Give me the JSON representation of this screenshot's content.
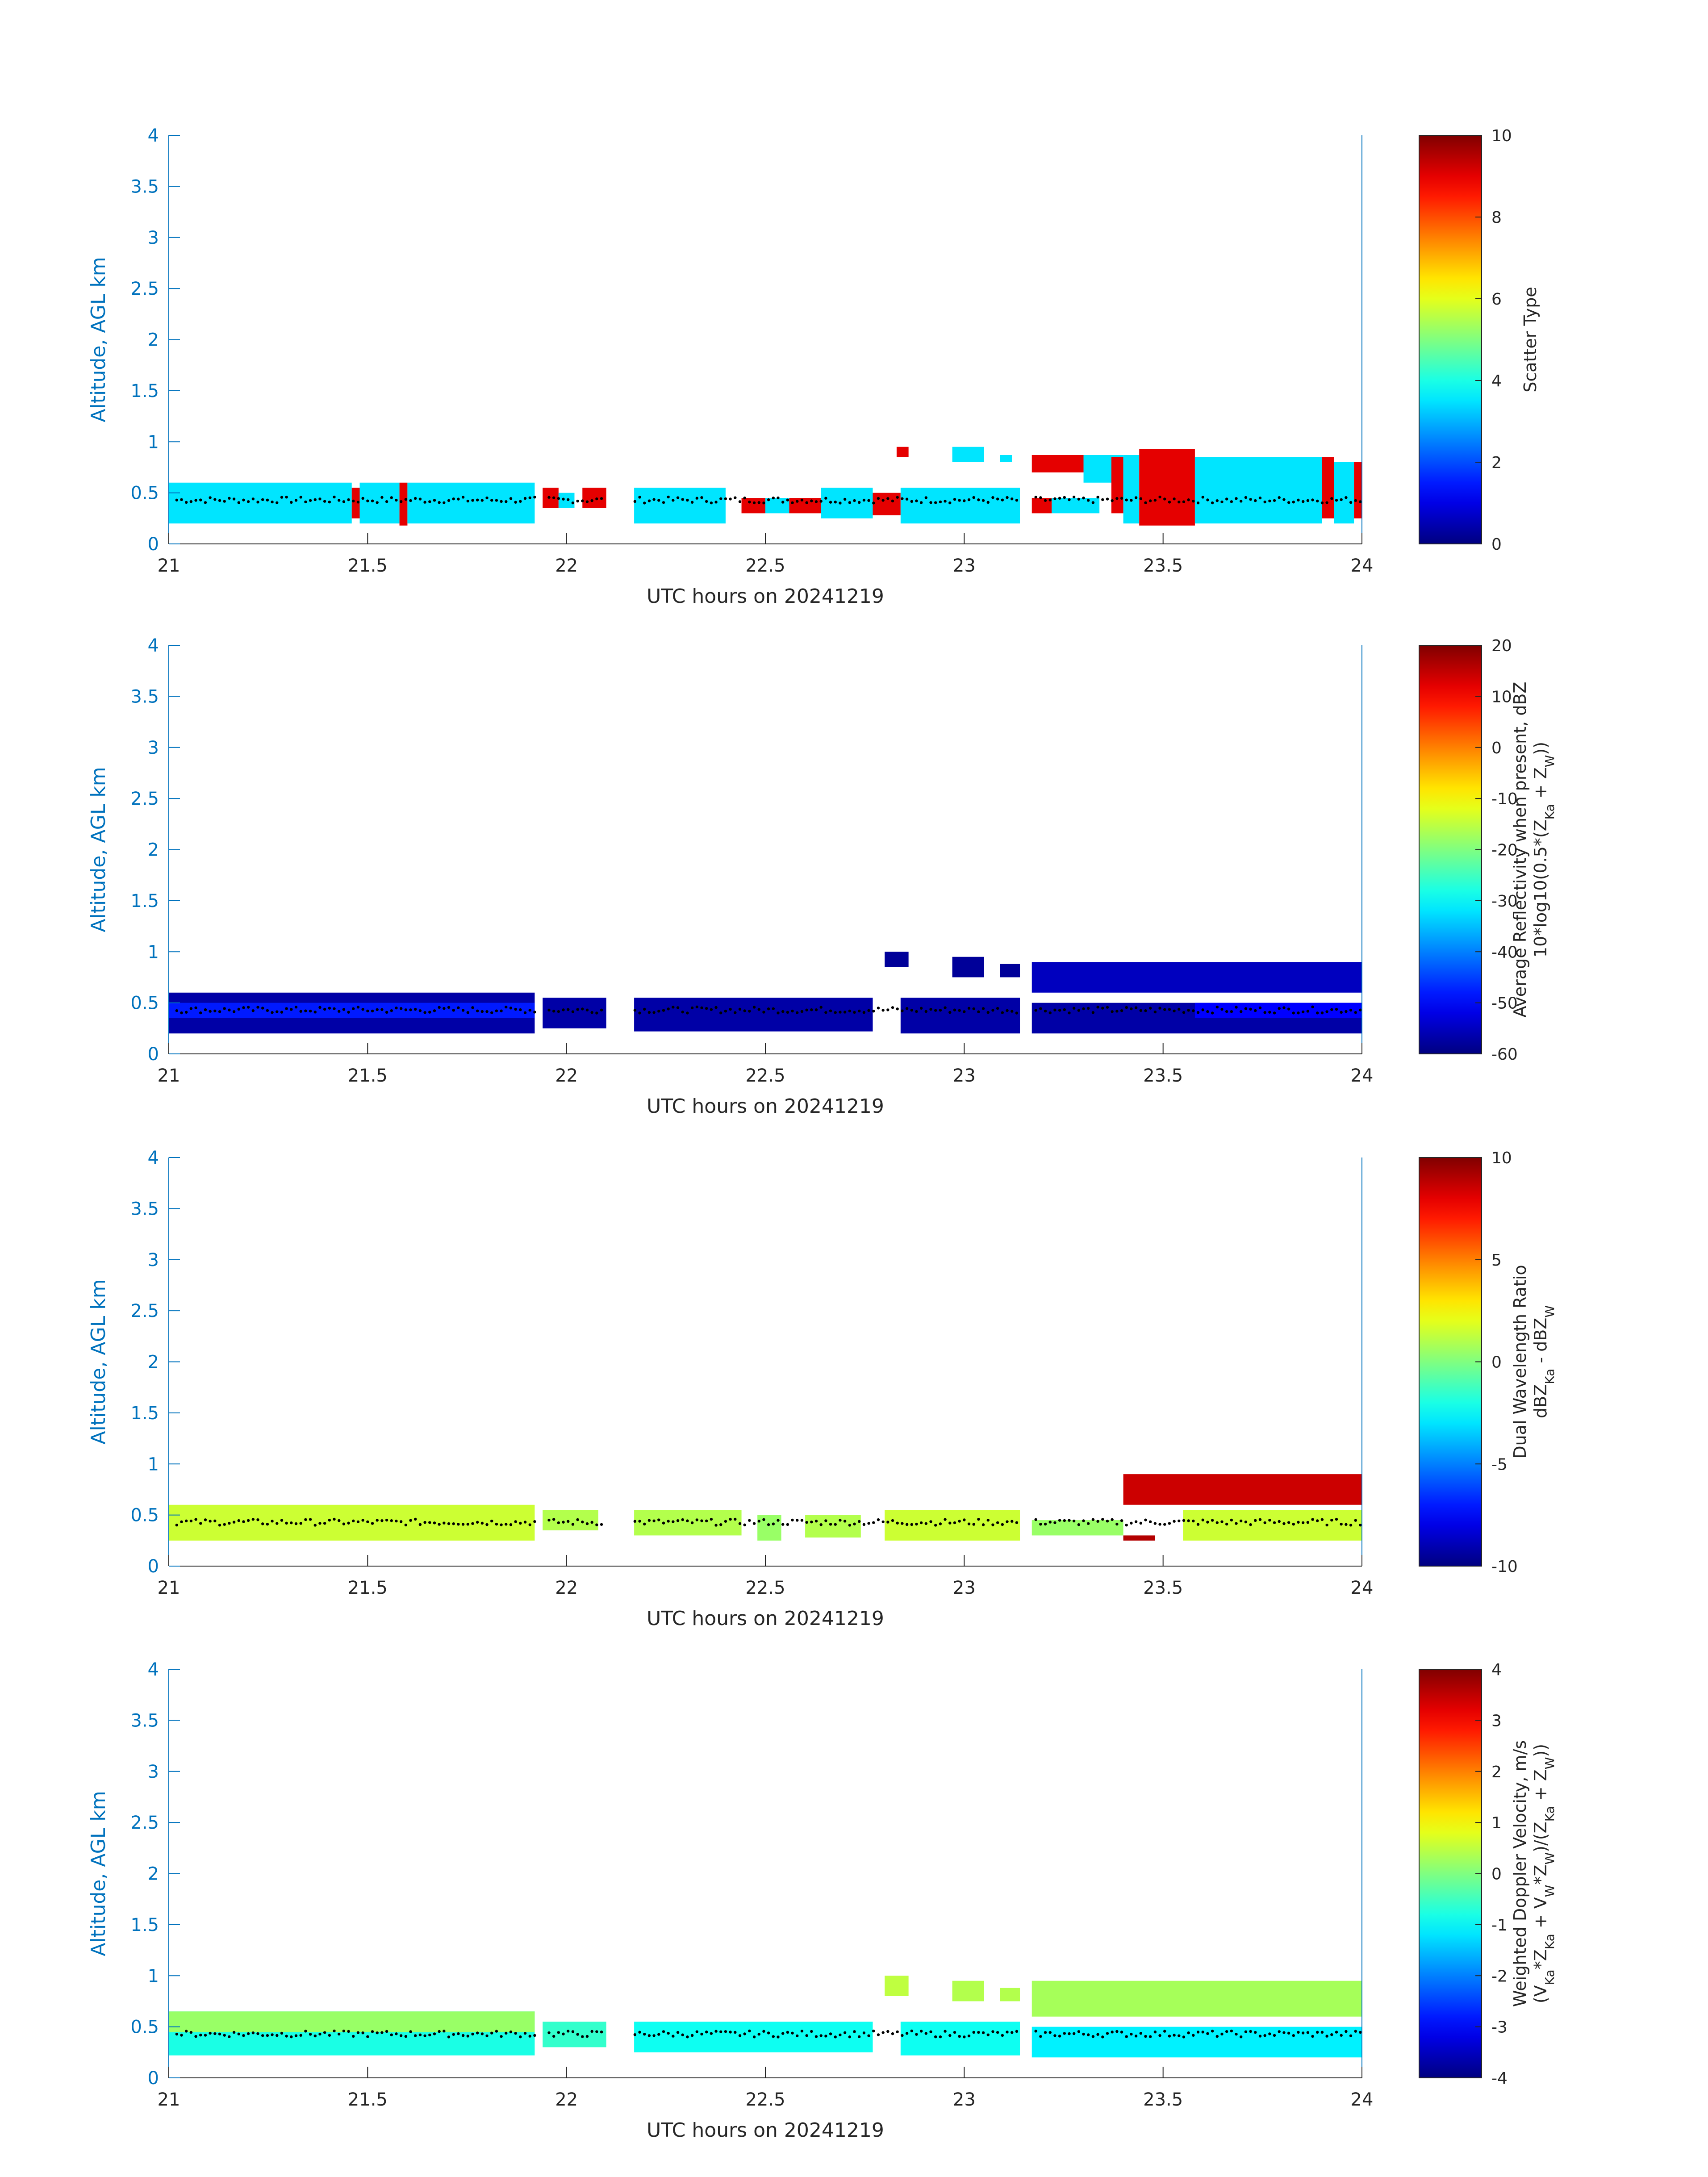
{
  "colors": {
    "axis_blue": "#0072BD",
    "text_dark": "#262626",
    "background": "#ffffff",
    "colormap": "jet",
    "surface_marker": "#000000"
  },
  "chart_data": [
    {
      "type": "heatmap",
      "panel": 1,
      "xlabel": "UTC hours on 20241219",
      "ylabel": "Altitude, AGL km",
      "xlim": [
        21,
        24
      ],
      "ylim": [
        0,
        4
      ],
      "xticks": [
        "21",
        "21.5",
        "22",
        "22.5",
        "23",
        "23.5",
        "24"
      ],
      "yticks": [
        "0",
        "0.5",
        "1",
        "1.5",
        "2",
        "2.5",
        "3",
        "3.5",
        "4"
      ],
      "colorbar": {
        "label_lines": [
          "Scatter Type"
        ],
        "clim": [
          0,
          10
        ],
        "ticks": [
          "0",
          "2",
          "4",
          "6",
          "8",
          "10"
        ]
      },
      "cells": [
        {
          "x0": 21.0,
          "x1": 21.46,
          "y0": 0.2,
          "y1": 0.6,
          "v": 3.5
        },
        {
          "x0": 21.46,
          "x1": 21.48,
          "y0": 0.25,
          "y1": 0.55,
          "v": 9.0
        },
        {
          "x0": 21.48,
          "x1": 21.58,
          "y0": 0.2,
          "y1": 0.6,
          "v": 3.5
        },
        {
          "x0": 21.58,
          "x1": 21.6,
          "y0": 0.18,
          "y1": 0.6,
          "v": 9.0
        },
        {
          "x0": 21.6,
          "x1": 21.92,
          "y0": 0.2,
          "y1": 0.6,
          "v": 3.5
        },
        {
          "x0": 21.94,
          "x1": 21.98,
          "y0": 0.35,
          "y1": 0.55,
          "v": 9.0
        },
        {
          "x0": 21.98,
          "x1": 22.02,
          "y0": 0.35,
          "y1": 0.5,
          "v": 3.5
        },
        {
          "x0": 22.04,
          "x1": 22.1,
          "y0": 0.35,
          "y1": 0.55,
          "v": 9.0
        },
        {
          "x0": 22.17,
          "x1": 22.4,
          "y0": 0.2,
          "y1": 0.55,
          "v": 3.5
        },
        {
          "x0": 22.44,
          "x1": 22.5,
          "y0": 0.3,
          "y1": 0.45,
          "v": 9.0
        },
        {
          "x0": 22.5,
          "x1": 22.56,
          "y0": 0.3,
          "y1": 0.45,
          "v": 3.5
        },
        {
          "x0": 22.56,
          "x1": 22.64,
          "y0": 0.3,
          "y1": 0.45,
          "v": 9.0
        },
        {
          "x0": 22.64,
          "x1": 22.77,
          "y0": 0.25,
          "y1": 0.55,
          "v": 3.5
        },
        {
          "x0": 22.77,
          "x1": 22.84,
          "y0": 0.28,
          "y1": 0.5,
          "v": 9.0
        },
        {
          "x0": 22.84,
          "x1": 23.14,
          "y0": 0.2,
          "y1": 0.55,
          "v": 3.5
        },
        {
          "x0": 22.83,
          "x1": 22.86,
          "y0": 0.85,
          "y1": 0.95,
          "v": 9.0
        },
        {
          "x0": 22.97,
          "x1": 23.05,
          "y0": 0.8,
          "y1": 0.95,
          "v": 3.5
        },
        {
          "x0": 23.09,
          "x1": 23.12,
          "y0": 0.8,
          "y1": 0.87,
          "v": 3.5
        },
        {
          "x0": 23.17,
          "x1": 23.3,
          "y0": 0.7,
          "y1": 0.87,
          "v": 9.0
        },
        {
          "x0": 23.17,
          "x1": 23.22,
          "y0": 0.3,
          "y1": 0.45,
          "v": 9.0
        },
        {
          "x0": 23.22,
          "x1": 23.34,
          "y0": 0.3,
          "y1": 0.45,
          "v": 3.5
        },
        {
          "x0": 23.3,
          "x1": 23.4,
          "y0": 0.6,
          "y1": 0.87,
          "v": 3.5
        },
        {
          "x0": 23.37,
          "x1": 23.4,
          "y0": 0.3,
          "y1": 0.85,
          "v": 9.0
        },
        {
          "x0": 23.4,
          "x1": 23.44,
          "y0": 0.2,
          "y1": 0.87,
          "v": 3.5
        },
        {
          "x0": 23.44,
          "x1": 23.58,
          "y0": 0.18,
          "y1": 0.93,
          "v": 9.0
        },
        {
          "x0": 23.58,
          "x1": 23.9,
          "y0": 0.2,
          "y1": 0.85,
          "v": 3.5
        },
        {
          "x0": 23.9,
          "x1": 23.93,
          "y0": 0.25,
          "y1": 0.85,
          "v": 9.0
        },
        {
          "x0": 23.93,
          "x1": 23.98,
          "y0": 0.2,
          "y1": 0.8,
          "v": 3.5
        },
        {
          "x0": 23.98,
          "x1": 24.0,
          "y0": 0.25,
          "y1": 0.8,
          "v": 9.0
        }
      ]
    },
    {
      "type": "heatmap",
      "panel": 2,
      "xlabel": "UTC hours on 20241219",
      "ylabel": "Altitude, AGL km",
      "xlim": [
        21,
        24
      ],
      "ylim": [
        0,
        4
      ],
      "xticks": [
        "21",
        "21.5",
        "22",
        "22.5",
        "23",
        "23.5",
        "24"
      ],
      "yticks": [
        "0",
        "0.5",
        "1",
        "1.5",
        "2",
        "2.5",
        "3",
        "3.5",
        "4"
      ],
      "colorbar": {
        "label_lines": [
          "Average Reflectivity when present, dBZ",
          "10*log10(0.5*(Z_Ka + Z_W))"
        ],
        "clim": [
          -60,
          20
        ],
        "ticks": [
          "-60",
          "-50",
          "-40",
          "-30",
          "-20",
          "-10",
          "0",
          "10",
          "20"
        ]
      },
      "cells": [
        {
          "x0": 21.0,
          "x1": 21.92,
          "y0": 0.2,
          "y1": 0.6,
          "v": -57
        },
        {
          "x0": 21.0,
          "x1": 21.92,
          "y0": 0.35,
          "y1": 0.5,
          "v": -48
        },
        {
          "x0": 21.94,
          "x1": 22.1,
          "y0": 0.25,
          "y1": 0.55,
          "v": -57
        },
        {
          "x0": 22.17,
          "x1": 22.77,
          "y0": 0.22,
          "y1": 0.55,
          "v": -57
        },
        {
          "x0": 22.8,
          "x1": 22.86,
          "y0": 0.85,
          "y1": 1.0,
          "v": -58
        },
        {
          "x0": 22.84,
          "x1": 23.14,
          "y0": 0.2,
          "y1": 0.55,
          "v": -57
        },
        {
          "x0": 22.97,
          "x1": 23.05,
          "y0": 0.75,
          "y1": 0.95,
          "v": -58
        },
        {
          "x0": 23.09,
          "x1": 23.14,
          "y0": 0.75,
          "y1": 0.88,
          "v": -58
        },
        {
          "x0": 23.17,
          "x1": 24.0,
          "y0": 0.6,
          "y1": 0.9,
          "v": -55
        },
        {
          "x0": 23.17,
          "x1": 24.0,
          "y0": 0.2,
          "y1": 0.5,
          "v": -57
        },
        {
          "x0": 23.58,
          "x1": 24.0,
          "y0": 0.35,
          "y1": 0.5,
          "v": -50
        }
      ]
    },
    {
      "type": "heatmap",
      "panel": 3,
      "xlabel": "UTC hours on 20241219",
      "ylabel": "Altitude, AGL km",
      "xlim": [
        21,
        24
      ],
      "ylim": [
        0,
        4
      ],
      "xticks": [
        "21",
        "21.5",
        "22",
        "22.5",
        "23",
        "23.5",
        "24"
      ],
      "yticks": [
        "0",
        "0.5",
        "1",
        "1.5",
        "2",
        "2.5",
        "3",
        "3.5",
        "4"
      ],
      "colorbar": {
        "label_lines": [
          "Dual Wavelength Ratio",
          "dBZ_Ka - dBZ_W"
        ],
        "clim": [
          -10,
          10
        ],
        "ticks": [
          "-10",
          "-5",
          "0",
          "5",
          "10"
        ]
      },
      "cells": [
        {
          "x0": 21.0,
          "x1": 21.92,
          "y0": 0.25,
          "y1": 0.6,
          "v": 1.5
        },
        {
          "x0": 21.94,
          "x1": 22.08,
          "y0": 0.35,
          "y1": 0.55,
          "v": 1.0
        },
        {
          "x0": 22.17,
          "x1": 22.44,
          "y0": 0.3,
          "y1": 0.55,
          "v": 1.0
        },
        {
          "x0": 22.48,
          "x1": 22.54,
          "y0": 0.25,
          "y1": 0.5,
          "v": 0.5
        },
        {
          "x0": 22.6,
          "x1": 22.74,
          "y0": 0.28,
          "y1": 0.5,
          "v": 1.0
        },
        {
          "x0": 22.8,
          "x1": 23.14,
          "y0": 0.25,
          "y1": 0.55,
          "v": 1.5
        },
        {
          "x0": 23.17,
          "x1": 23.4,
          "y0": 0.3,
          "y1": 0.45,
          "v": 0.5
        },
        {
          "x0": 23.4,
          "x1": 23.48,
          "y0": 0.25,
          "y1": 0.3,
          "v": 9.0
        },
        {
          "x0": 23.4,
          "x1": 24.0,
          "y0": 0.6,
          "y1": 0.9,
          "v": 8.5
        },
        {
          "x0": 23.55,
          "x1": 24.0,
          "y0": 0.25,
          "y1": 0.55,
          "v": 1.5
        }
      ]
    },
    {
      "type": "heatmap",
      "panel": 4,
      "xlabel": "UTC hours on 20241219",
      "ylabel": "Altitude, AGL km",
      "xlim": [
        21,
        24
      ],
      "ylim": [
        0,
        4
      ],
      "xticks": [
        "21",
        "21.5",
        "22",
        "22.5",
        "23",
        "23.5",
        "24"
      ],
      "yticks": [
        "0",
        "0.5",
        "1",
        "1.5",
        "2",
        "2.5",
        "3",
        "3.5",
        "4"
      ],
      "colorbar": {
        "label_lines": [
          "Weighted Doppler Velocity, m/s",
          "(V_Ka*Z_Ka + V_W*Z_W)/(Z_Ka + Z_W))"
        ],
        "clim": [
          -4,
          4
        ],
        "ticks": [
          "-4",
          "-3",
          "-2",
          "-1",
          "0",
          "1",
          "2",
          "3",
          "4"
        ]
      },
      "cells": [
        {
          "x0": 21.0,
          "x1": 21.92,
          "y0": 0.22,
          "y1": 0.65,
          "v": -0.8
        },
        {
          "x0": 21.0,
          "x1": 21.92,
          "y0": 0.45,
          "y1": 0.65,
          "v": 0.2
        },
        {
          "x0": 21.94,
          "x1": 22.1,
          "y0": 0.3,
          "y1": 0.55,
          "v": -0.6
        },
        {
          "x0": 22.17,
          "x1": 22.77,
          "y0": 0.25,
          "y1": 0.55,
          "v": -0.9
        },
        {
          "x0": 22.8,
          "x1": 22.86,
          "y0": 0.8,
          "y1": 1.0,
          "v": 0.5
        },
        {
          "x0": 22.84,
          "x1": 23.14,
          "y0": 0.22,
          "y1": 0.55,
          "v": -0.9
        },
        {
          "x0": 22.97,
          "x1": 23.05,
          "y0": 0.75,
          "y1": 0.95,
          "v": 0.4
        },
        {
          "x0": 23.09,
          "x1": 23.14,
          "y0": 0.75,
          "y1": 0.88,
          "v": 0.4
        },
        {
          "x0": 23.17,
          "x1": 24.0,
          "y0": 0.6,
          "y1": 0.95,
          "v": 0.3
        },
        {
          "x0": 23.17,
          "x1": 24.0,
          "y0": 0.2,
          "y1": 0.5,
          "v": -1.1
        }
      ]
    }
  ]
}
